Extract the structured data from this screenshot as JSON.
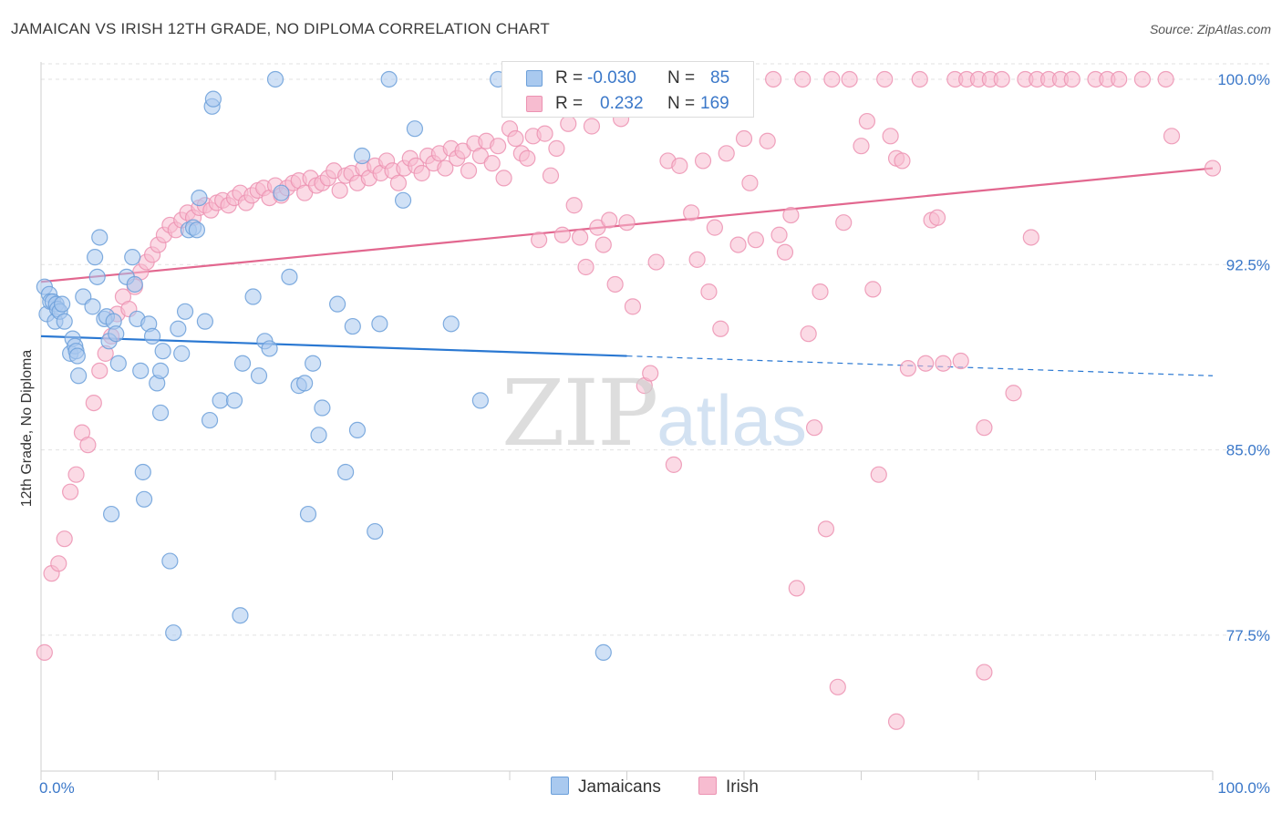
{
  "title": "JAMAICAN VS IRISH 12TH GRADE, NO DIPLOMA CORRELATION CHART",
  "source": "Source: ZipAtlas.com",
  "watermark": {
    "zip": "ZIP",
    "atlas": "atlas"
  },
  "colors": {
    "jamaicans_fill": "#a9c9ef",
    "jamaicans_stroke": "#6b9fd9",
    "jamaicans_line": "#2a78d2",
    "irish_fill": "#f7bcd0",
    "irish_stroke": "#ec92b2",
    "irish_line": "#e2678f",
    "axis_text_blue": "#3b78c9",
    "grid": "#e2e2e2"
  },
  "stats": {
    "jamaicans": {
      "r_label": "R =",
      "r_value": "-0.030",
      "n_label": "N =",
      "n_value": "85"
    },
    "irish": {
      "r_label": "R =",
      "r_value": "0.232",
      "n_label": "N =",
      "n_value": "169"
    }
  },
  "legend": {
    "jamaicans": "Jamaicans",
    "irish": "Irish"
  },
  "chart_data": {
    "type": "scatter",
    "title": "JAMAICAN VS IRISH 12TH GRADE, NO DIPLOMA CORRELATION CHART",
    "xlabel": "",
    "ylabel": "12th Grade, No Diploma",
    "xlim": [
      0,
      100
    ],
    "ylim": [
      72.0,
      100.7
    ],
    "x_tick_labels": [
      "0.0%",
      "100.0%"
    ],
    "y_ticks": [
      77.5,
      85.0,
      92.5,
      100.0
    ],
    "y_tick_labels": [
      "77.5%",
      "85.0%",
      "92.5%",
      "100.0%"
    ],
    "grid": true,
    "series": [
      {
        "name": "Jamaicans",
        "r": -0.03,
        "n": 85,
        "trend": {
          "x0": 0,
          "y0": 89.6,
          "x1": 100,
          "y1": 88.0,
          "solid_until_x": 50
        },
        "points": [
          [
            0.3,
            91.6
          ],
          [
            0.5,
            90.5
          ],
          [
            0.7,
            91.3
          ],
          [
            0.8,
            91.0
          ],
          [
            1.0,
            91.0
          ],
          [
            1.2,
            90.2
          ],
          [
            1.3,
            90.9
          ],
          [
            1.4,
            90.7
          ],
          [
            1.6,
            90.6
          ],
          [
            1.8,
            90.9
          ],
          [
            2.0,
            90.2
          ],
          [
            2.5,
            88.9
          ],
          [
            2.7,
            89.5
          ],
          [
            2.9,
            89.2
          ],
          [
            3.0,
            89.0
          ],
          [
            3.1,
            88.8
          ],
          [
            3.2,
            88.0
          ],
          [
            3.6,
            91.2
          ],
          [
            4.4,
            90.8
          ],
          [
            4.6,
            92.8
          ],
          [
            4.8,
            92.0
          ],
          [
            5.0,
            93.6
          ],
          [
            5.4,
            90.3
          ],
          [
            5.6,
            90.4
          ],
          [
            5.8,
            89.4
          ],
          [
            6.2,
            90.2
          ],
          [
            6.4,
            89.7
          ],
          [
            6.6,
            88.5
          ],
          [
            7.3,
            92.0
          ],
          [
            7.8,
            92.8
          ],
          [
            8.0,
            91.7
          ],
          [
            8.2,
            90.3
          ],
          [
            8.5,
            88.2
          ],
          [
            8.7,
            84.1
          ],
          [
            8.8,
            83.0
          ],
          [
            9.2,
            90.1
          ],
          [
            9.5,
            89.6
          ],
          [
            9.9,
            87.7
          ],
          [
            10.2,
            88.2
          ],
          [
            10.4,
            89.0
          ],
          [
            11.0,
            80.5
          ],
          [
            11.3,
            77.6
          ],
          [
            11.7,
            89.9
          ],
          [
            12.0,
            88.9
          ],
          [
            12.3,
            90.6
          ],
          [
            12.6,
            93.9
          ],
          [
            13.0,
            94.0
          ],
          [
            13.3,
            93.9
          ],
          [
            13.5,
            95.2
          ],
          [
            14.0,
            90.2
          ],
          [
            14.4,
            86.2
          ],
          [
            14.6,
            98.9
          ],
          [
            14.7,
            99.2
          ],
          [
            15.3,
            87.0
          ],
          [
            16.5,
            87.0
          ],
          [
            17.0,
            78.3
          ],
          [
            17.2,
            88.5
          ],
          [
            18.1,
            91.2
          ],
          [
            18.6,
            88.0
          ],
          [
            19.1,
            89.4
          ],
          [
            19.5,
            89.1
          ],
          [
            20.0,
            100.0
          ],
          [
            20.5,
            95.4
          ],
          [
            21.2,
            92.0
          ],
          [
            22.0,
            87.6
          ],
          [
            22.5,
            87.7
          ],
          [
            22.8,
            82.4
          ],
          [
            23.2,
            88.5
          ],
          [
            23.7,
            85.6
          ],
          [
            24.0,
            86.7
          ],
          [
            25.3,
            90.9
          ],
          [
            26.0,
            84.1
          ],
          [
            26.6,
            90.0
          ],
          [
            27.0,
            85.8
          ],
          [
            27.4,
            96.9
          ],
          [
            28.5,
            81.7
          ],
          [
            28.9,
            90.1
          ],
          [
            29.7,
            100.0
          ],
          [
            30.9,
            95.1
          ],
          [
            31.9,
            98.0
          ],
          [
            35.0,
            90.1
          ],
          [
            37.5,
            87.0
          ],
          [
            39.0,
            100.0
          ],
          [
            48.0,
            76.8
          ],
          [
            10.2,
            86.5
          ],
          [
            6.0,
            82.4
          ]
        ]
      },
      {
        "name": "Irish",
        "r": 0.232,
        "n": 169,
        "trend": {
          "x0": 0,
          "y0": 91.8,
          "x1": 100,
          "y1": 96.4
        },
        "points": [
          [
            0.3,
            76.8
          ],
          [
            0.9,
            80.0
          ],
          [
            1.5,
            80.4
          ],
          [
            2.0,
            81.4
          ],
          [
            2.5,
            83.3
          ],
          [
            3.0,
            84.0
          ],
          [
            3.5,
            85.7
          ],
          [
            4.0,
            85.2
          ],
          [
            4.5,
            86.9
          ],
          [
            5.0,
            88.2
          ],
          [
            5.5,
            88.9
          ],
          [
            6.0,
            89.6
          ],
          [
            6.5,
            90.5
          ],
          [
            7.0,
            91.2
          ],
          [
            7.5,
            90.7
          ],
          [
            8.0,
            91.6
          ],
          [
            8.5,
            92.2
          ],
          [
            9.0,
            92.6
          ],
          [
            9.5,
            92.9
          ],
          [
            10.0,
            93.3
          ],
          [
            10.5,
            93.7
          ],
          [
            11.0,
            94.1
          ],
          [
            11.5,
            93.9
          ],
          [
            12.0,
            94.3
          ],
          [
            12.5,
            94.6
          ],
          [
            13.0,
            94.4
          ],
          [
            13.5,
            94.8
          ],
          [
            14.0,
            94.9
          ],
          [
            14.5,
            94.7
          ],
          [
            15.0,
            95.0
          ],
          [
            15.5,
            95.1
          ],
          [
            16.0,
            94.9
          ],
          [
            16.5,
            95.2
          ],
          [
            17.0,
            95.4
          ],
          [
            17.5,
            95.0
          ],
          [
            18.0,
            95.3
          ],
          [
            18.5,
            95.5
          ],
          [
            19.0,
            95.6
          ],
          [
            19.5,
            95.2
          ],
          [
            20.0,
            95.7
          ],
          [
            20.5,
            95.3
          ],
          [
            21.0,
            95.6
          ],
          [
            21.5,
            95.8
          ],
          [
            22.0,
            95.9
          ],
          [
            22.5,
            95.4
          ],
          [
            23.0,
            96.0
          ],
          [
            23.5,
            95.7
          ],
          [
            24.0,
            95.8
          ],
          [
            24.5,
            96.0
          ],
          [
            25.0,
            96.3
          ],
          [
            25.5,
            95.5
          ],
          [
            26.0,
            96.1
          ],
          [
            26.5,
            96.2
          ],
          [
            27.0,
            95.8
          ],
          [
            27.5,
            96.4
          ],
          [
            28.0,
            96.0
          ],
          [
            28.5,
            96.5
          ],
          [
            29.0,
            96.2
          ],
          [
            29.5,
            96.7
          ],
          [
            30.0,
            96.3
          ],
          [
            30.5,
            95.8
          ],
          [
            31.0,
            96.4
          ],
          [
            31.5,
            96.8
          ],
          [
            32.0,
            96.5
          ],
          [
            32.5,
            96.2
          ],
          [
            33.0,
            96.9
          ],
          [
            33.5,
            96.6
          ],
          [
            34.0,
            97.0
          ],
          [
            34.5,
            96.4
          ],
          [
            35.0,
            97.2
          ],
          [
            35.5,
            96.8
          ],
          [
            36.0,
            97.1
          ],
          [
            36.5,
            96.3
          ],
          [
            37.0,
            97.4
          ],
          [
            37.5,
            96.9
          ],
          [
            38.0,
            97.5
          ],
          [
            38.5,
            96.6
          ],
          [
            39.0,
            97.3
          ],
          [
            39.5,
            96.0
          ],
          [
            40.0,
            98.0
          ],
          [
            40.5,
            97.6
          ],
          [
            41.0,
            97.0
          ],
          [
            41.5,
            96.8
          ],
          [
            42.0,
            97.7
          ],
          [
            42.5,
            93.5
          ],
          [
            43.0,
            97.8
          ],
          [
            43.5,
            96.1
          ],
          [
            44.0,
            97.2
          ],
          [
            44.5,
            93.7
          ],
          [
            45.0,
            98.2
          ],
          [
            45.5,
            94.9
          ],
          [
            46.0,
            93.6
          ],
          [
            46.5,
            92.4
          ],
          [
            47.0,
            98.1
          ],
          [
            47.5,
            94.0
          ],
          [
            48.0,
            93.3
          ],
          [
            48.5,
            94.3
          ],
          [
            49.0,
            91.7
          ],
          [
            49.5,
            98.4
          ],
          [
            50.0,
            94.2
          ],
          [
            50.5,
            90.8
          ],
          [
            51.0,
            99.0
          ],
          [
            51.5,
            87.6
          ],
          [
            52.0,
            88.1
          ],
          [
            52.5,
            92.6
          ],
          [
            53.0,
            100.0
          ],
          [
            53.5,
            96.7
          ],
          [
            54.0,
            84.4
          ],
          [
            54.5,
            96.5
          ],
          [
            55.0,
            100.0
          ],
          [
            55.5,
            94.6
          ],
          [
            56.0,
            92.7
          ],
          [
            56.5,
            96.7
          ],
          [
            57.0,
            91.4
          ],
          [
            57.5,
            94.0
          ],
          [
            58.0,
            89.9
          ],
          [
            58.5,
            97.0
          ],
          [
            59.0,
            100.0
          ],
          [
            59.5,
            93.3
          ],
          [
            60.0,
            97.6
          ],
          [
            60.5,
            95.8
          ],
          [
            61.0,
            93.5
          ],
          [
            62.0,
            97.5
          ],
          [
            62.5,
            100.0
          ],
          [
            63.0,
            93.7
          ],
          [
            63.5,
            93.0
          ],
          [
            64.0,
            94.5
          ],
          [
            64.5,
            79.4
          ],
          [
            65.0,
            100.0
          ],
          [
            65.5,
            89.7
          ],
          [
            66.0,
            85.9
          ],
          [
            66.5,
            91.4
          ],
          [
            67.0,
            81.8
          ],
          [
            67.5,
            100.0
          ],
          [
            68.0,
            75.4
          ],
          [
            68.5,
            94.2
          ],
          [
            69.0,
            100.0
          ],
          [
            70.0,
            97.3
          ],
          [
            70.5,
            98.3
          ],
          [
            71.0,
            91.5
          ],
          [
            71.5,
            84.0
          ],
          [
            72.0,
            100.0
          ],
          [
            72.5,
            97.7
          ],
          [
            73.0,
            96.8
          ],
          [
            73.5,
            96.7
          ],
          [
            74.0,
            88.3
          ],
          [
            75.0,
            100.0
          ],
          [
            75.5,
            88.5
          ],
          [
            76.0,
            94.3
          ],
          [
            76.5,
            94.4
          ],
          [
            77.0,
            88.5
          ],
          [
            78.0,
            100.0
          ],
          [
            78.5,
            88.6
          ],
          [
            79.0,
            100.0
          ],
          [
            80.0,
            100.0
          ],
          [
            80.5,
            85.9
          ],
          [
            81.0,
            100.0
          ],
          [
            82.0,
            100.0
          ],
          [
            83.0,
            87.3
          ],
          [
            84.0,
            100.0
          ],
          [
            84.5,
            93.6
          ],
          [
            85.0,
            100.0
          ],
          [
            86.0,
            100.0
          ],
          [
            87.0,
            100.0
          ],
          [
            88.0,
            100.0
          ],
          [
            90.0,
            100.0
          ],
          [
            91.0,
            100.0
          ],
          [
            92.0,
            100.0
          ],
          [
            94.0,
            100.0
          ],
          [
            96.0,
            100.0
          ],
          [
            96.5,
            97.7
          ],
          [
            100.0,
            96.4
          ],
          [
            73.0,
            74.0
          ],
          [
            80.5,
            76.0
          ]
        ]
      }
    ]
  }
}
